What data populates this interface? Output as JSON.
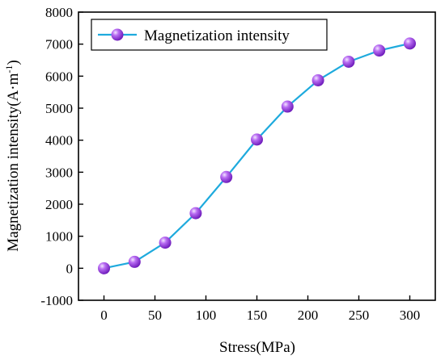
{
  "chart_data": {
    "type": "line",
    "xlabel": "Stress(MPa)",
    "ylabel_main": "Magnetization intensity(A·m",
    "ylabel_sup": "-1",
    "ylabel_close": ")",
    "xlim": [
      -25,
      325
    ],
    "ylim": [
      -1000,
      8000
    ],
    "x_ticks": [
      0,
      50,
      100,
      150,
      200,
      250,
      300
    ],
    "y_ticks": [
      -1000,
      0,
      1000,
      2000,
      3000,
      4000,
      5000,
      6000,
      7000,
      8000
    ],
    "grid": false,
    "legend_position": "top-left",
    "series": [
      {
        "name": "Magnetization intensity",
        "color": "#1eaadd",
        "marker_color": "#9b3fe0",
        "x": [
          0,
          30,
          60,
          90,
          120,
          150,
          180,
          210,
          240,
          270,
          300
        ],
        "y": [
          0,
          200,
          800,
          1720,
          2850,
          4020,
          5050,
          5870,
          6450,
          6800,
          7020
        ]
      }
    ]
  }
}
